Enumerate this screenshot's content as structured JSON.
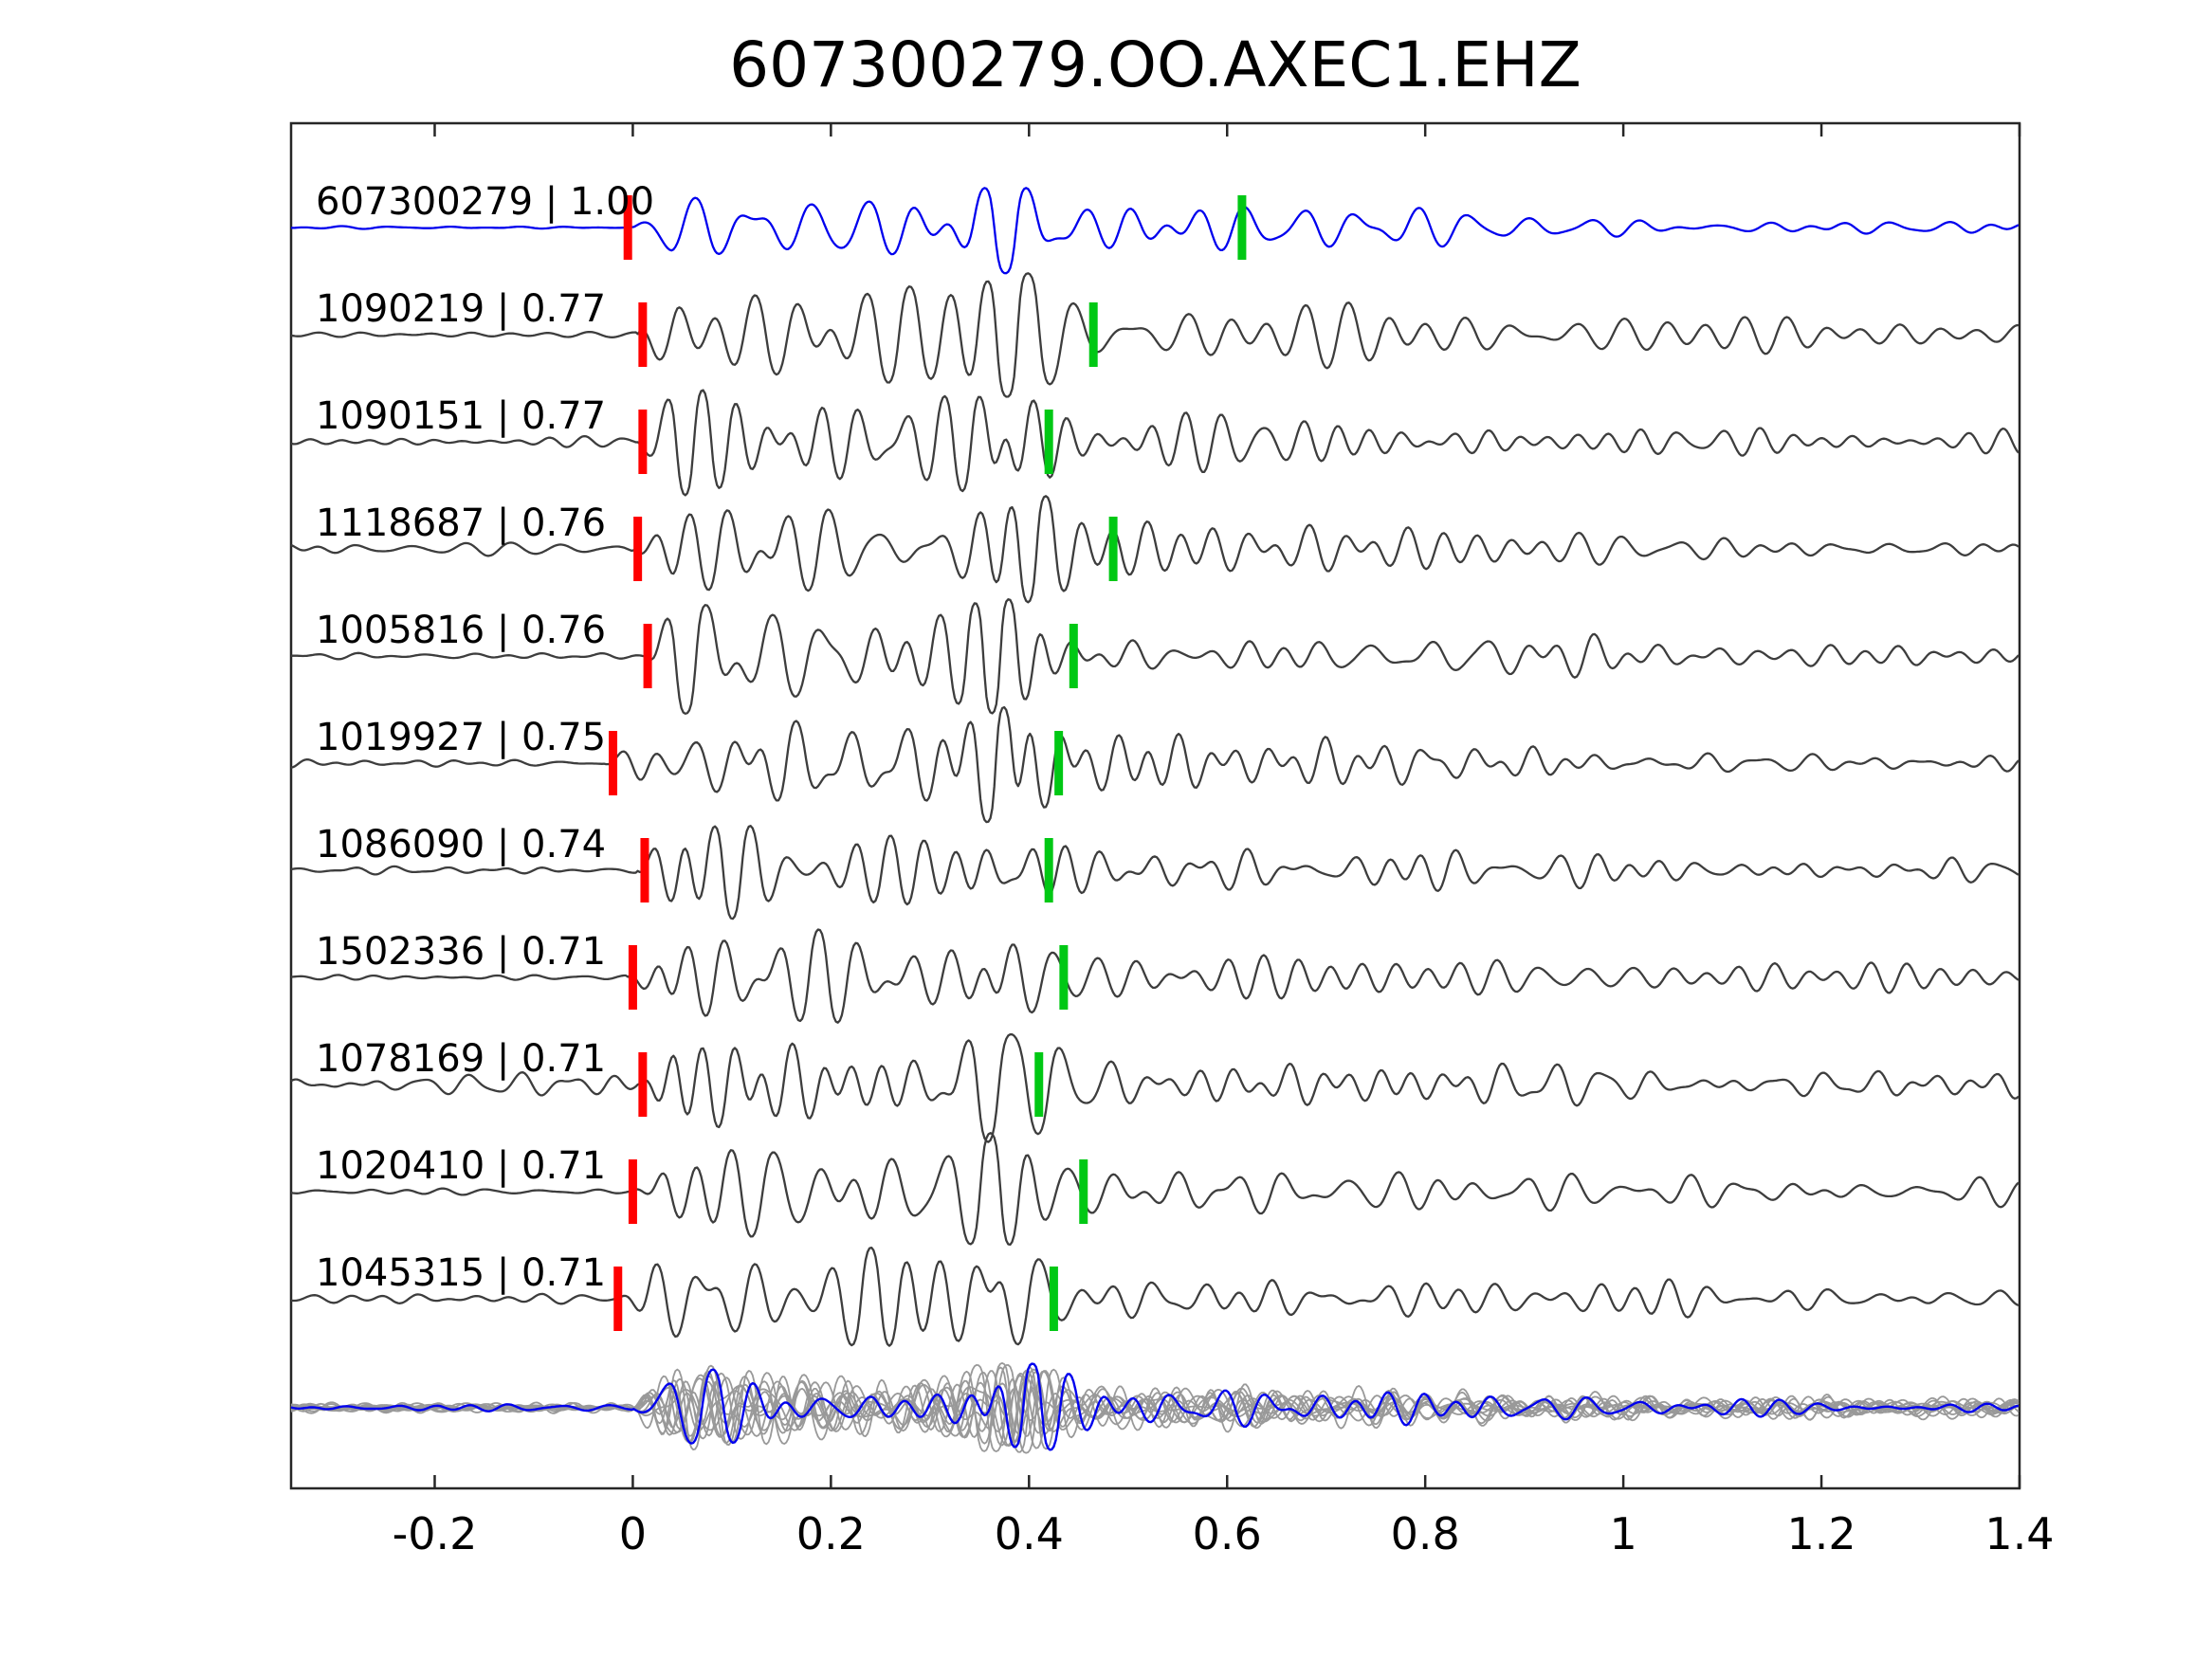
{
  "title": "607300279.OO.AXEC1.EHZ",
  "chart_data": {
    "type": "line",
    "title": "607300279.OO.AXEC1.EHZ",
    "xlabel": "",
    "ylabel": "",
    "xlim": [
      -0.345,
      1.4
    ],
    "grid": false,
    "legend": "none",
    "xticks": [
      -0.2,
      0,
      0.2,
      0.4,
      0.6,
      0.8,
      1,
      1.2,
      1.4
    ],
    "xtick_labels": [
      "-0.2",
      "0",
      "0.2",
      "0.4",
      "0.6",
      "0.8",
      "1",
      "1.2",
      "1.4"
    ],
    "colors": {
      "reference": "#0000ee",
      "trace": "#3d3d3d",
      "overlay": "#999999",
      "overlay_highlight": "#0000ee",
      "pick_red": "#ff0000",
      "pick_green": "#00c814",
      "axis": "#262626",
      "text": "#000000"
    },
    "traces": [
      {
        "id": "607300279",
        "correlation": "1.00",
        "label": "607300279 | 1.00",
        "color_role": "reference",
        "pick_red": -0.005,
        "pick_green": 0.615,
        "seed": 101,
        "amp": 55,
        "pre": 0.02,
        "bump": 1.0,
        "tb": 0.385,
        "onset": 0
      },
      {
        "id": "1090219",
        "correlation": "0.77",
        "label": "1090219 | 0.77",
        "color_role": "trace",
        "pick_red": 0.01,
        "pick_green": 0.465,
        "seed": 202,
        "amp": 72,
        "pre": 0.03,
        "bump": 0.8,
        "tb": 0.375,
        "onset": 0.005
      },
      {
        "id": "1090151",
        "correlation": "0.77",
        "label": "1090151 | 0.77",
        "color_role": "trace",
        "pick_red": 0.01,
        "pick_green": 0.42,
        "seed": 303,
        "amp": 72,
        "pre": 0.05,
        "bump": 0.9,
        "tb": 0.38,
        "onset": 0.005
      },
      {
        "id": "1118687",
        "correlation": "0.76",
        "label": "1118687 | 0.76",
        "color_role": "trace",
        "pick_red": 0.005,
        "pick_green": 0.485,
        "seed": 404,
        "amp": 66,
        "pre": 0.12,
        "bump": 1.0,
        "tb": 0.38,
        "onset": 0
      },
      {
        "id": "1005816",
        "correlation": "0.76",
        "label": "1005816 | 0.76",
        "color_role": "trace",
        "pick_red": 0.015,
        "pick_green": 0.445,
        "seed": 505,
        "amp": 68,
        "pre": 0.04,
        "bump": 1.0,
        "tb": 0.38,
        "onset": 0.01
      },
      {
        "id": "1019927",
        "correlation": "0.75",
        "label": "1019927 | 0.75",
        "color_role": "trace",
        "pick_red": -0.02,
        "pick_green": 0.43,
        "seed": 606,
        "amp": 70,
        "pre": 0.05,
        "bump": 0.9,
        "tb": 0.385,
        "onset": -0.03
      },
      {
        "id": "1086090",
        "correlation": "0.74",
        "label": "1086090 | 0.74",
        "color_role": "trace",
        "pick_red": 0.012,
        "pick_green": 0.42,
        "seed": 707,
        "amp": 64,
        "pre": 0.05,
        "bump": 1.0,
        "tb": 0.385,
        "onset": 0.005
      },
      {
        "id": "1502336",
        "correlation": "0.71",
        "label": "1502336 | 0.71",
        "color_role": "trace",
        "pick_red": 0.0,
        "pick_green": 0.435,
        "seed": 808,
        "amp": 68,
        "pre": 0.04,
        "bump": 0.85,
        "tb": 0.38,
        "onset": -0.005
      },
      {
        "id": "1078169",
        "correlation": "0.71",
        "label": "1078169 | 0.71",
        "color_role": "trace",
        "pick_red": 0.01,
        "pick_green": 0.41,
        "seed": 909,
        "amp": 72,
        "pre": 0.12,
        "bump": 0.8,
        "tb": 0.375,
        "onset": 0.005
      },
      {
        "id": "1020410",
        "correlation": "0.71",
        "label": "1020410 | 0.71",
        "color_role": "trace",
        "pick_red": 0.0,
        "pick_green": 0.455,
        "seed": 1010,
        "amp": 70,
        "pre": 0.04,
        "bump": 0.9,
        "tb": 0.39,
        "onset": -0.005
      },
      {
        "id": "1045315",
        "correlation": "0.71",
        "label": "1045315 | 0.71",
        "color_role": "trace",
        "pick_red": -0.015,
        "pick_green": 0.425,
        "seed": 1111,
        "amp": 70,
        "pre": 0.06,
        "bump": 0.9,
        "tb": 0.38,
        "onset": -0.02
      }
    ],
    "overlay": {
      "description": "stack of all aligned traces with reference trace highlighted",
      "count": 11,
      "amp": 52,
      "seed": 5000,
      "pre": 0.06,
      "bump": 0.85,
      "tb": 0.385,
      "highlight_seed": 4999
    }
  }
}
